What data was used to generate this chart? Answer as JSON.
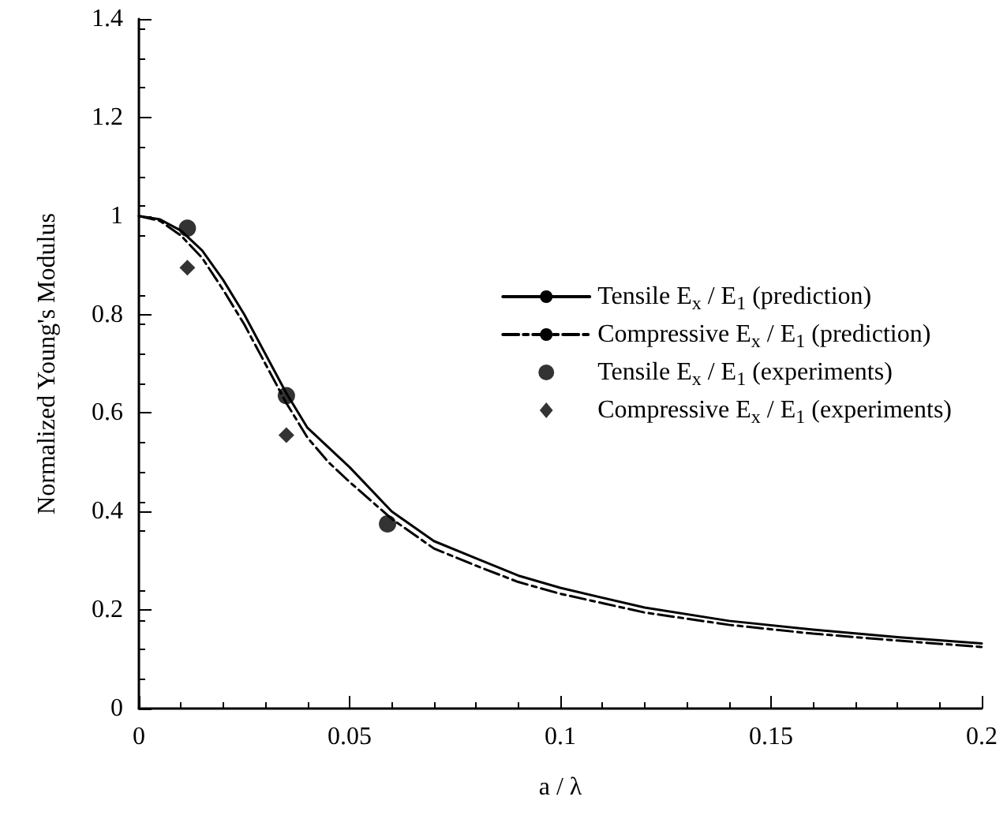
{
  "chart_data": {
    "type": "line",
    "xlabel": "a / λ",
    "ylabel": "Normalized Young's Modulus",
    "xlim": [
      0,
      0.2
    ],
    "xticks": [
      0,
      0.05,
      0.1,
      0.15,
      0.2
    ],
    "ylim": [
      0,
      1.4
    ],
    "yticks": [
      0,
      0.2,
      0.4,
      0.6,
      0.8,
      1,
      1.2,
      1.4
    ],
    "grid": false,
    "legend": "right",
    "series": [
      {
        "name": "Tensile E$_{x}$ / E$_{1}$ (prediction)",
        "line_style": "solid",
        "marker": "none",
        "color": "#000000",
        "x": [
          0,
          0.005,
          0.01,
          0.015,
          0.02,
          0.025,
          0.03,
          0.035,
          0.04,
          0.045,
          0.05,
          0.06,
          0.07,
          0.08,
          0.09,
          0.1,
          0.12,
          0.14,
          0.16,
          0.18,
          0.2
        ],
        "values": [
          1.0,
          0.993,
          0.97,
          0.93,
          0.87,
          0.8,
          0.72,
          0.64,
          0.57,
          0.53,
          0.49,
          0.4,
          0.34,
          0.305,
          0.27,
          0.245,
          0.205,
          0.178,
          0.16,
          0.145,
          0.132
        ]
      },
      {
        "name": "Compressive E$_{x}$ / E$_{1}$ (prediction)",
        "line_style": "dashed",
        "marker": "none",
        "color": "#000000",
        "x": [
          0,
          0.005,
          0.01,
          0.015,
          0.02,
          0.025,
          0.03,
          0.035,
          0.04,
          0.045,
          0.05,
          0.06,
          0.07,
          0.08,
          0.09,
          0.1,
          0.12,
          0.14,
          0.16,
          0.18,
          0.2
        ],
        "values": [
          1.0,
          0.99,
          0.96,
          0.915,
          0.85,
          0.78,
          0.7,
          0.62,
          0.55,
          0.5,
          0.46,
          0.385,
          0.325,
          0.29,
          0.257,
          0.233,
          0.195,
          0.17,
          0.152,
          0.138,
          0.125
        ]
      },
      {
        "name": "Tensile E$_{x}$ / E$_{1}$ (experiments)",
        "type": "scatter",
        "marker": "circle",
        "color": "#000000",
        "x": [
          0.0115,
          0.035,
          0.059
        ],
        "values": [
          0.975,
          0.635,
          0.375
        ]
      },
      {
        "name": "Compressive E$_{x}$ / E$_{1}$ (experiments)",
        "type": "scatter",
        "marker": "diamond",
        "color": "#000000",
        "x": [
          0.0115,
          0.035
        ],
        "values": [
          0.895,
          0.555
        ]
      }
    ]
  }
}
